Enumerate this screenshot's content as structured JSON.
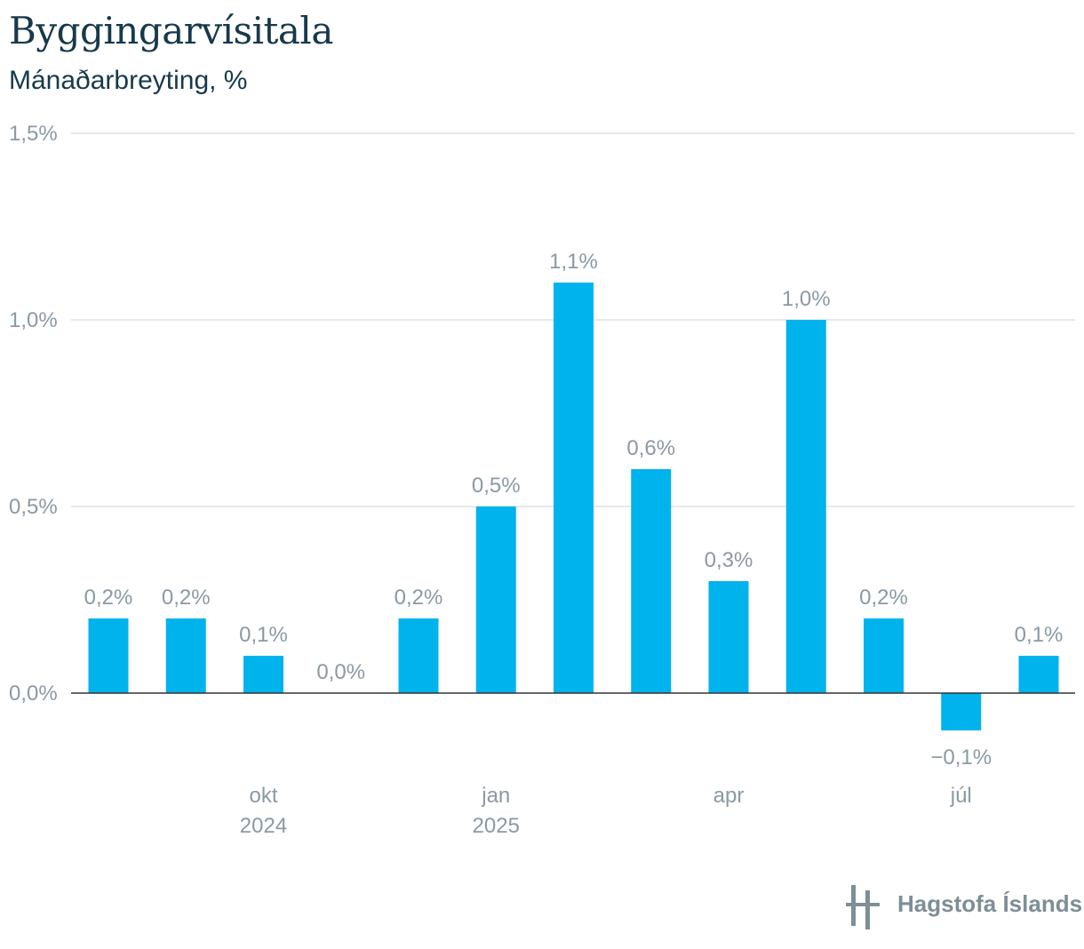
{
  "chart_data": {
    "type": "bar",
    "title": "Byggingarvísitala",
    "subtitle": "Mánaðarbreyting, %",
    "categories": [
      "2024-08",
      "2024-09",
      "2024-10",
      "2024-11",
      "2024-12",
      "2025-01",
      "2025-02",
      "2025-03",
      "2025-04",
      "2025-05",
      "2025-06",
      "2025-07",
      "2025-08"
    ],
    "values": [
      0.2,
      0.2,
      0.1,
      0.0,
      0.2,
      0.5,
      1.1,
      0.6,
      0.3,
      1.0,
      0.2,
      -0.1,
      0.1
    ],
    "data_labels": [
      "0,2%",
      "0,2%",
      "0,1%",
      "0,0%",
      "0,2%",
      "0,5%",
      "1,1%",
      "0,6%",
      "0,3%",
      "1,0%",
      "0,2%",
      "−0,1%",
      "0,1%"
    ],
    "ylim": [
      -0.2,
      1.5
    ],
    "y_ticks": [
      {
        "value": 0.0,
        "label": "0,0%"
      },
      {
        "value": 0.5,
        "label": "0,5%"
      },
      {
        "value": 1.0,
        "label": "1,0%"
      },
      {
        "value": 1.5,
        "label": "1,5%"
      }
    ],
    "x_ticks": [
      {
        "index": 2,
        "label": "okt",
        "sublabel": "2024"
      },
      {
        "index": 5,
        "label": "jan",
        "sublabel": "2025"
      },
      {
        "index": 8,
        "label": "apr",
        "sublabel": ""
      },
      {
        "index": 11,
        "label": "júl",
        "sublabel": ""
      }
    ],
    "grid": true,
    "bar_color": "#00b3ec"
  },
  "logo": {
    "text": "Hagstofa Íslands"
  },
  "colors": {
    "title": "#17394a",
    "grid": "#dde3e6",
    "axis": "#333333",
    "label": "#8a9aa3",
    "logo": "#7d8e96"
  }
}
